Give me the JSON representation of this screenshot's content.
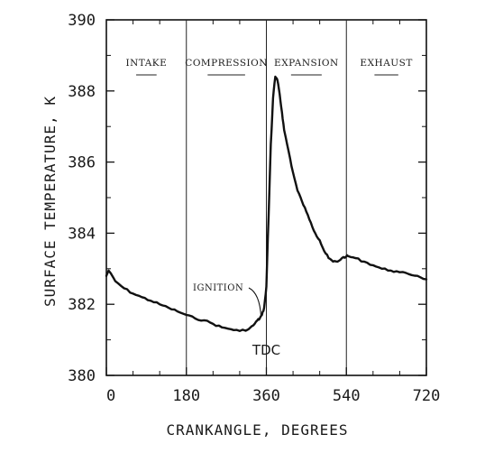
{
  "chart_data": {
    "type": "line",
    "xlabel": "CRANKANGLE, DEGREES",
    "ylabel": "SURFACE TEMPERATURE, K",
    "xlim": [
      0,
      720
    ],
    "ylim": [
      380,
      390
    ],
    "x_ticks": [
      "0",
      "180",
      "360",
      "540",
      "720"
    ],
    "y_ticks": [
      "380",
      "382",
      "384",
      "386",
      "388",
      "390"
    ],
    "phases": [
      {
        "label": "INTAKE",
        "start": 0,
        "end": 180
      },
      {
        "label": "COMPRESSION",
        "start": 180,
        "end": 360
      },
      {
        "label": "EXPANSION",
        "start": 360,
        "end": 540
      },
      {
        "label": "EXHAUST",
        "start": 540,
        "end": 720
      }
    ],
    "annotations": {
      "ignition": "IGNITION",
      "tdc": "TDC"
    },
    "series": [
      {
        "x": [
          0,
          5,
          20,
          40,
          60,
          80,
          100,
          120,
          140,
          160,
          180,
          200,
          220,
          240,
          260,
          280,
          300,
          320,
          330,
          340,
          345,
          350,
          355,
          360,
          365,
          370,
          375,
          380,
          385,
          390,
          395,
          400,
          410,
          420,
          430,
          440,
          450,
          460,
          470,
          480,
          490,
          500,
          510,
          520,
          530,
          540,
          545,
          560,
          580,
          600,
          620,
          640,
          660,
          680,
          700,
          720
        ],
        "y": [
          382.8,
          382.95,
          382.65,
          382.45,
          382.3,
          382.2,
          382.1,
          382.0,
          381.9,
          381.8,
          381.7,
          381.6,
          381.55,
          381.45,
          381.35,
          381.3,
          381.25,
          381.3,
          381.4,
          381.55,
          381.6,
          381.7,
          381.9,
          382.5,
          384.5,
          386.5,
          387.8,
          388.4,
          388.3,
          387.9,
          387.4,
          386.9,
          386.3,
          385.7,
          385.2,
          384.9,
          384.6,
          384.3,
          384.0,
          383.8,
          383.5,
          383.3,
          383.2,
          383.2,
          383.3,
          383.35,
          383.35,
          383.3,
          383.2,
          383.1,
          383.0,
          382.95,
          382.9,
          382.85,
          382.8,
          382.7
        ]
      }
    ]
  }
}
